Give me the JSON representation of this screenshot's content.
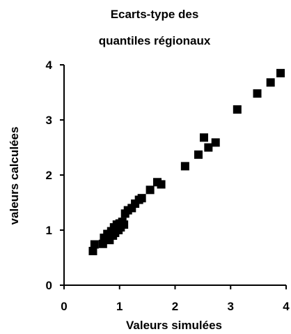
{
  "chart_data": {
    "type": "scatter",
    "title_lines": [
      "Ecarts-type des",
      "quantiles régionaux"
    ],
    "xlabel": "Valeurs simulées",
    "ylabel": "valeurs calculées",
    "xlim": [
      0,
      4
    ],
    "ylim": [
      0,
      4
    ],
    "xticks": [
      "0",
      "1",
      "2",
      "3",
      "4"
    ],
    "yticks": [
      "0",
      "1",
      "2",
      "3",
      "4"
    ],
    "grid": false,
    "legend": "none",
    "marker": "square",
    "marker_color": "#000000",
    "points": [
      {
        "x": 0.52,
        "y": 0.62
      },
      {
        "x": 0.55,
        "y": 0.74
      },
      {
        "x": 0.7,
        "y": 0.75
      },
      {
        "x": 0.72,
        "y": 0.86
      },
      {
        "x": 0.78,
        "y": 0.93
      },
      {
        "x": 0.82,
        "y": 0.82
      },
      {
        "x": 0.85,
        "y": 0.98
      },
      {
        "x": 0.88,
        "y": 0.9
      },
      {
        "x": 0.9,
        "y": 1.05
      },
      {
        "x": 0.92,
        "y": 0.95
      },
      {
        "x": 0.95,
        "y": 1.1
      },
      {
        "x": 0.98,
        "y": 1.0
      },
      {
        "x": 1.0,
        "y": 1.12
      },
      {
        "x": 1.02,
        "y": 1.05
      },
      {
        "x": 1.05,
        "y": 1.15
      },
      {
        "x": 1.08,
        "y": 1.1
      },
      {
        "x": 1.1,
        "y": 1.3
      },
      {
        "x": 1.15,
        "y": 1.36
      },
      {
        "x": 1.22,
        "y": 1.4
      },
      {
        "x": 1.28,
        "y": 1.48
      },
      {
        "x": 1.35,
        "y": 1.55
      },
      {
        "x": 1.4,
        "y": 1.58
      },
      {
        "x": 1.55,
        "y": 1.73
      },
      {
        "x": 1.68,
        "y": 1.87
      },
      {
        "x": 1.75,
        "y": 1.83
      },
      {
        "x": 2.18,
        "y": 2.16
      },
      {
        "x": 2.42,
        "y": 2.37
      },
      {
        "x": 2.52,
        "y": 2.68
      },
      {
        "x": 2.6,
        "y": 2.5
      },
      {
        "x": 2.73,
        "y": 2.59
      },
      {
        "x": 3.12,
        "y": 3.19
      },
      {
        "x": 3.48,
        "y": 3.48
      },
      {
        "x": 3.72,
        "y": 3.68
      },
      {
        "x": 3.9,
        "y": 3.85
      }
    ]
  }
}
